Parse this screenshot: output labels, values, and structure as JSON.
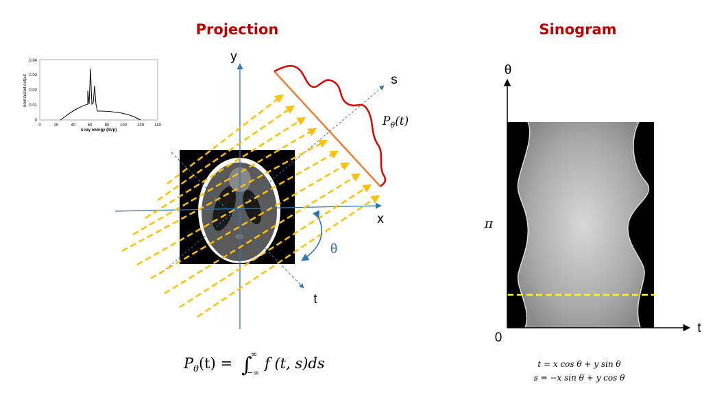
{
  "colors": {
    "title": "#c00000",
    "axis_blue": "#2e75b6",
    "ray_yellow": "#ffc000",
    "detector_orange": "#ed7d31",
    "profile_red": "#e00000",
    "phantom_bg": "#000000"
  },
  "projection": {
    "title": "Projection",
    "axis_x": "x",
    "axis_y": "y",
    "axis_s": "s",
    "axis_t": "t",
    "angle": "θ",
    "profile_label": {
      "base": "P",
      "sub": "θ",
      "arg": "(t)"
    },
    "formula": {
      "lhs_base": "P",
      "lhs_sub": "θ",
      "lhs_arg": "(t) = ",
      "integral": "∫",
      "upper": "∞",
      "lower": "−∞",
      "integrand": "f (t, s)ds"
    }
  },
  "spectrum": {
    "ylabel": "normalized output",
    "xlabel": "x-ray energy (kVp)",
    "yticks": [
      "0",
      "0.01",
      "0.02",
      "0.03",
      "0.04"
    ],
    "xticks": [
      "0",
      "20",
      "40",
      "60",
      "80",
      "100",
      "120",
      "140"
    ]
  },
  "sinogram": {
    "title": "Sinogram",
    "axis_theta": "θ",
    "axis_t": "t",
    "label_pi": "π",
    "label_zero": "0",
    "eq1": "t = x cos θ + y sin θ",
    "eq2": "s = −x sin θ + y cos θ"
  }
}
